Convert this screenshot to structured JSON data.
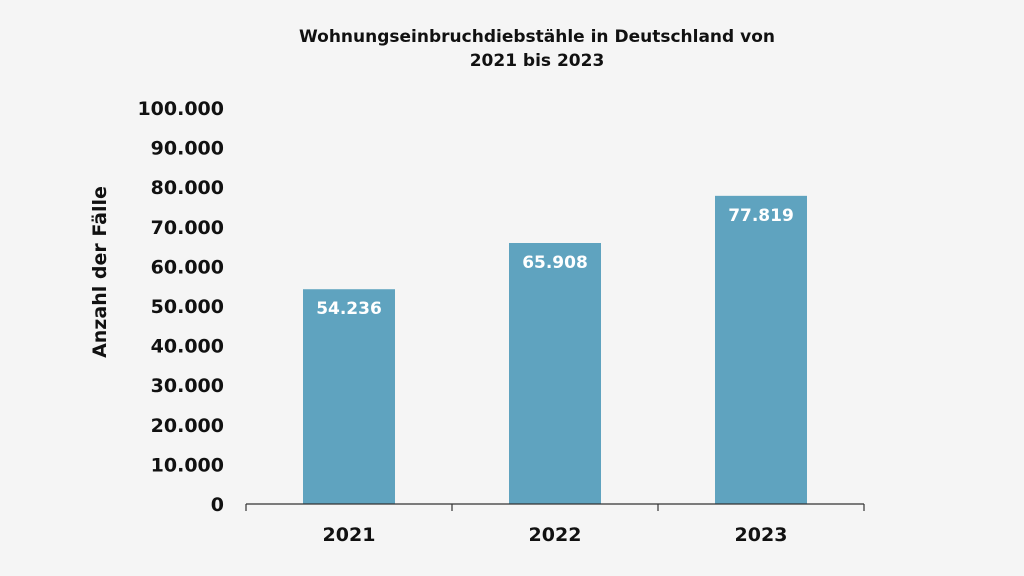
{
  "chart_data": {
    "type": "bar",
    "title_lines": [
      "Wohnungseinbruchdiebstähle in Deutschland von",
      "2021 bis 2023"
    ],
    "ylabel": "Anzahl der Fälle",
    "xlabel": "",
    "categories": [
      "2021",
      "2022",
      "2023"
    ],
    "values": [
      54236,
      65908,
      77819
    ],
    "value_labels": [
      "54.236",
      "65.908",
      "77.819"
    ],
    "ylim": [
      0,
      100000
    ],
    "yticks": [
      0,
      10000,
      20000,
      30000,
      40000,
      50000,
      60000,
      70000,
      80000,
      90000,
      100000
    ],
    "ytick_labels": [
      "0",
      "10.000",
      "20.000",
      "30.000",
      "40.000",
      "50.000",
      "60.000",
      "70.000",
      "80.000",
      "90.000",
      "100.000"
    ],
    "grid": false,
    "legend": "none",
    "colors": {
      "bar": "#5fa3bf",
      "text": "#111111",
      "data_label": "#ffffff",
      "axis": "#333333",
      "background": "#f5f5f5"
    }
  }
}
